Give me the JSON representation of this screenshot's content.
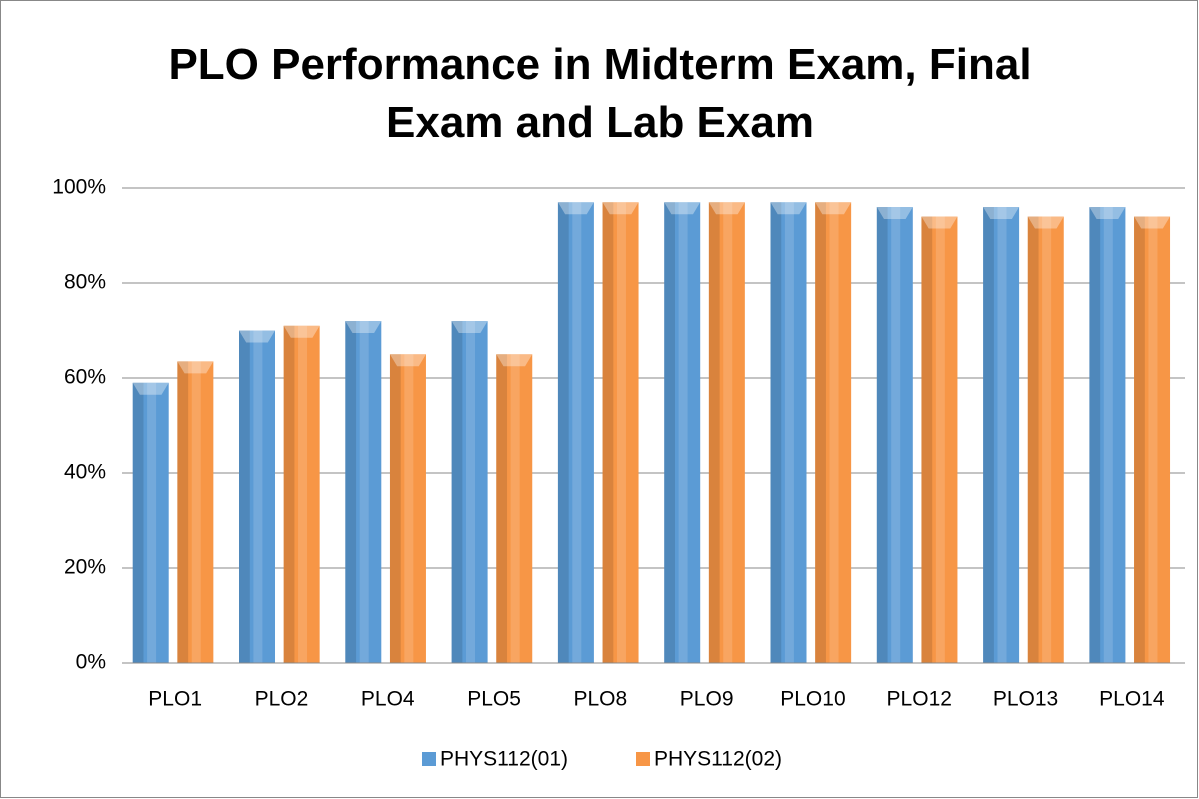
{
  "chart_data": {
    "type": "bar",
    "title": "PLO Performance in Midterm Exam, Final Exam and Lab Exam",
    "categories": [
      "PLO1",
      "PLO2",
      "PLO4",
      "PLO5",
      "PLO8",
      "PLO9",
      "PLO10",
      "PLO12",
      "PLO13",
      "PLO14"
    ],
    "series": [
      {
        "name": "PHYS112(01)",
        "color": "#5b9bd5",
        "values": [
          59,
          70,
          72,
          72,
          97,
          97,
          97,
          96,
          96,
          96
        ]
      },
      {
        "name": "PHYS112(02)",
        "color": "#f79646",
        "values": [
          63.5,
          71,
          65,
          65,
          97,
          97,
          97,
          94,
          94,
          94
        ]
      }
    ],
    "ylim": [
      0,
      100
    ],
    "yticks": [
      {
        "value": 0,
        "label": "0%"
      },
      {
        "value": 20,
        "label": "20%"
      },
      {
        "value": 40,
        "label": "40%"
      },
      {
        "value": 60,
        "label": "60%"
      },
      {
        "value": 80,
        "label": "80%"
      },
      {
        "value": 100,
        "label": "100%"
      }
    ],
    "grid": true,
    "legend": "bottom"
  }
}
